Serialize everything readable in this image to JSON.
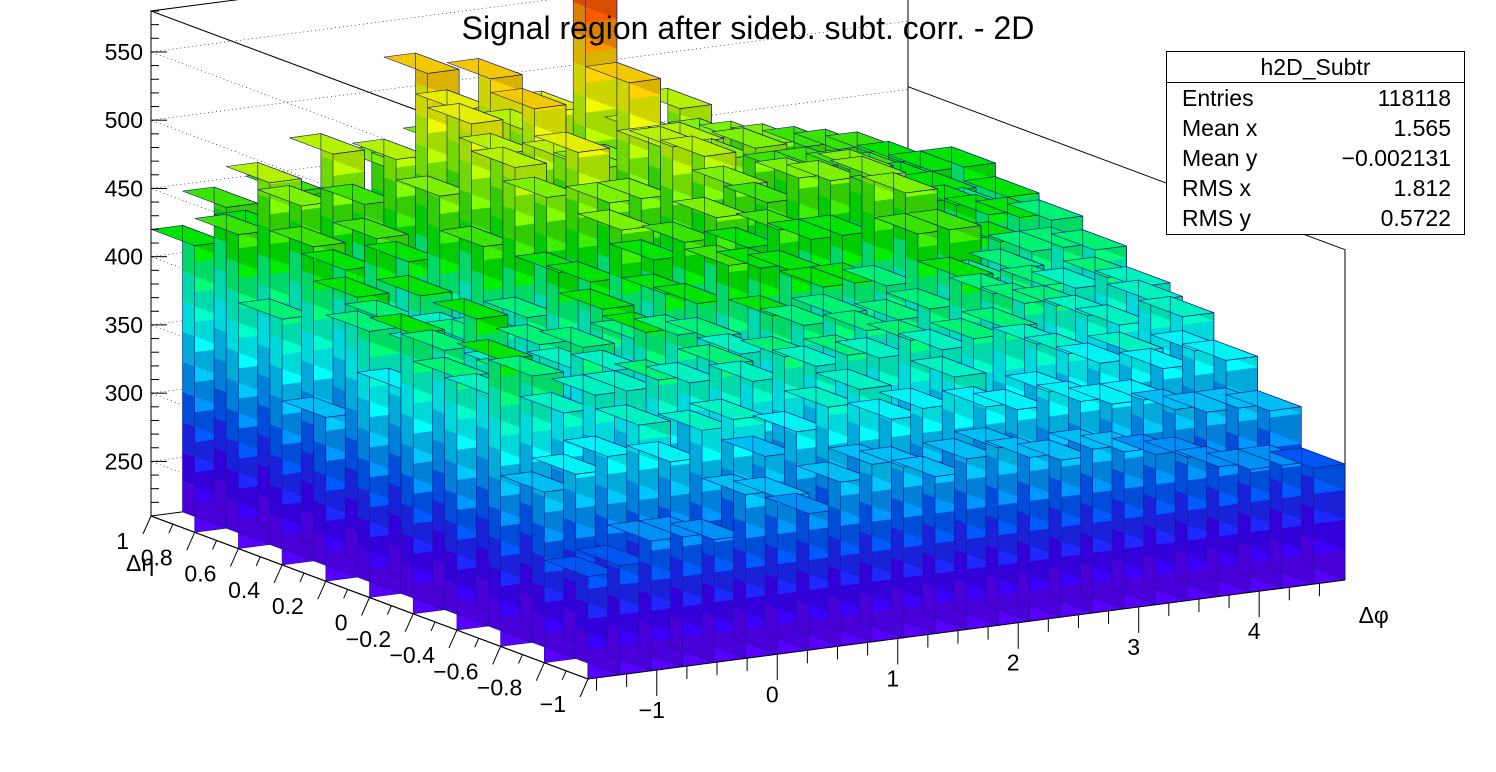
{
  "chart_data": {
    "type": "lego",
    "title": "Signal region after sideb. subt. corr. - 2D",
    "xlabel": "Δφ",
    "ylabel": "Δη",
    "zlabel": "",
    "x_range": [
      -1.5708,
      4.7124
    ],
    "y_range": [
      -1.0,
      1.0
    ],
    "z_range": [
      210,
      580
    ],
    "x_ticks": [
      "−1",
      "0",
      "1",
      "2",
      "3",
      "4"
    ],
    "y_ticks": [
      "1",
      "0.8",
      "0.6",
      "0.4",
      "0.2",
      "0",
      "−0.2",
      "−0.4",
      "−0.6",
      "−0.8",
      "−1"
    ],
    "z_ticks": [
      "250",
      "300",
      "350",
      "400",
      "450",
      "500",
      "550"
    ],
    "nx": 24,
    "ny": 10,
    "values": [
      [
        285,
        335,
        420,
        395,
        415,
        405,
        330,
        390,
        440,
        420
      ],
      [
        290,
        345,
        405,
        380,
        400,
        360,
        415,
        440,
        475,
        445
      ],
      [
        305,
        355,
        375,
        390,
        420,
        385,
        395,
        420,
        455,
        425
      ],
      [
        305,
        375,
        385,
        360,
        380,
        390,
        410,
        440,
        490,
        450
      ],
      [
        300,
        345,
        385,
        405,
        395,
        390,
        380,
        420,
        450,
        420
      ],
      [
        330,
        365,
        390,
        385,
        375,
        400,
        440,
        465,
        480,
        430
      ],
      [
        325,
        370,
        385,
        410,
        415,
        430,
        495,
        515,
        540,
        460
      ],
      [
        310,
        340,
        395,
        405,
        390,
        420,
        470,
        490,
        510,
        455
      ],
      [
        330,
        355,
        380,
        400,
        420,
        455,
        500,
        520,
        530,
        470
      ],
      [
        340,
        370,
        395,
        385,
        410,
        430,
        460,
        480,
        490,
        465
      ],
      [
        335,
        380,
        385,
        410,
        435,
        440,
        460,
        470,
        500,
        480
      ],
      [
        325,
        355,
        390,
        400,
        430,
        455,
        495,
        530,
        585,
        470
      ],
      [
        335,
        360,
        385,
        405,
        425,
        430,
        485,
        480,
        455,
        450
      ],
      [
        340,
        380,
        395,
        390,
        410,
        440,
        460,
        480,
        475,
        460
      ],
      [
        330,
        355,
        385,
        395,
        410,
        430,
        445,
        465,
        490,
        455
      ],
      [
        325,
        350,
        390,
        400,
        405,
        430,
        460,
        470,
        465,
        445
      ],
      [
        330,
        360,
        395,
        420,
        440,
        470,
        455,
        450,
        460,
        440
      ],
      [
        325,
        350,
        380,
        405,
        440,
        455,
        460,
        450,
        455,
        440
      ],
      [
        320,
        345,
        370,
        395,
        400,
        420,
        440,
        445,
        450,
        430
      ],
      [
        315,
        345,
        360,
        390,
        405,
        415,
        430,
        440,
        445,
        430
      ],
      [
        305,
        335,
        365,
        380,
        390,
        410,
        425,
        430,
        440,
        425
      ],
      [
        300,
        330,
        350,
        370,
        385,
        400,
        415,
        420,
        430,
        415
      ],
      [
        300,
        330,
        360,
        385,
        390,
        400,
        410,
        405,
        420,
        410
      ],
      [
        295,
        325,
        350,
        370,
        380,
        395,
        405,
        410,
        420,
        405
      ]
    ],
    "grid": true,
    "stats_box": {
      "name": "h2D_Subtr",
      "rows": [
        {
          "label": "Entries",
          "value": "118118"
        },
        {
          "label": "Mean x",
          "value": "1.565"
        },
        {
          "label": "Mean y",
          "value": "−0.002131"
        },
        {
          "label": "RMS x",
          "value": "1.812"
        },
        {
          "label": "RMS y",
          "value": "0.5722"
        }
      ]
    }
  }
}
